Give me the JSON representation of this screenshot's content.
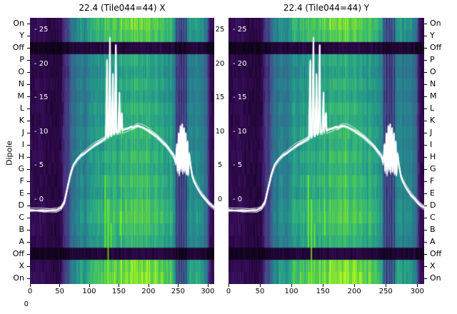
{
  "figure": {
    "panels": [
      {
        "title": "22.4 (Tile044=44) X"
      },
      {
        "title": "22.4 (Tile044=44) Y"
      }
    ],
    "left_axis_label": "Dipole",
    "corner_zero": "0"
  },
  "chart_data": {
    "type": "heatmap",
    "description": "Two spectrogram-style heatmaps (dipole row vs frequency channel, viridis colormap) for Tile044 X and Y polarisations, each overlaid with white bandpass power curves (scale 0-25) showing a broad hump with narrow RFI spikes near channels 130-155 and an oscillating cluster near channels 246-270.",
    "x_ticks": [
      0,
      50,
      100,
      150,
      200,
      250,
      300
    ],
    "x_range": [
      0,
      311
    ],
    "dipole_rows": [
      "On",
      "Y",
      "Off",
      "P",
      "O",
      "N",
      "M",
      "L",
      "K",
      "J",
      "I",
      "H",
      "G",
      "F",
      "E",
      "D",
      "C",
      "B",
      "A",
      "Off",
      "X",
      "On"
    ],
    "overlay_axis": {
      "ticks": [
        25,
        20,
        15,
        10,
        5,
        0
      ],
      "inner_label_prefix": "- "
    },
    "colormap": {
      "stops": [
        [
          0.0,
          "#0c0316"
        ],
        [
          0.12,
          "#340a54"
        ],
        [
          0.25,
          "#46327e"
        ],
        [
          0.4,
          "#3b5f8c"
        ],
        [
          0.55,
          "#2b788e"
        ],
        [
          0.68,
          "#23968b"
        ],
        [
          0.8,
          "#35b779"
        ],
        [
          0.9,
          "#5ad046"
        ],
        [
          1.0,
          "#aef522"
        ]
      ]
    },
    "heatmap": {
      "column_profile": [
        [
          0,
          0.1
        ],
        [
          15,
          0.12
        ],
        [
          30,
          0.09
        ],
        [
          45,
          0.08
        ],
        [
          52,
          0.1
        ],
        [
          56,
          0.22
        ],
        [
          60,
          0.3
        ],
        [
          64,
          0.26
        ],
        [
          68,
          0.45
        ],
        [
          72,
          0.55
        ],
        [
          76,
          0.5
        ],
        [
          80,
          0.58
        ],
        [
          86,
          0.62
        ],
        [
          92,
          0.55
        ],
        [
          98,
          0.66
        ],
        [
          104,
          0.72
        ],
        [
          110,
          0.68
        ],
        [
          116,
          0.75
        ],
        [
          122,
          0.7
        ],
        [
          128,
          0.78
        ],
        [
          134,
          0.74
        ],
        [
          140,
          0.8
        ],
        [
          146,
          0.76
        ],
        [
          152,
          0.82
        ],
        [
          158,
          0.78
        ],
        [
          164,
          0.84
        ],
        [
          170,
          0.8
        ],
        [
          176,
          0.85
        ],
        [
          182,
          0.81
        ],
        [
          188,
          0.84
        ],
        [
          194,
          0.79
        ],
        [
          200,
          0.82
        ],
        [
          206,
          0.77
        ],
        [
          212,
          0.8
        ],
        [
          218,
          0.74
        ],
        [
          224,
          0.77
        ],
        [
          230,
          0.71
        ],
        [
          236,
          0.74
        ],
        [
          240,
          0.68
        ],
        [
          244,
          0.6
        ],
        [
          247,
          0.22
        ],
        [
          249,
          0.5
        ],
        [
          251,
          0.15
        ],
        [
          253,
          0.48
        ],
        [
          255,
          0.13
        ],
        [
          257,
          0.46
        ],
        [
          259,
          0.16
        ],
        [
          261,
          0.52
        ],
        [
          263,
          0.18
        ],
        [
          265,
          0.55
        ],
        [
          268,
          0.6
        ],
        [
          272,
          0.63
        ],
        [
          276,
          0.6
        ],
        [
          280,
          0.63
        ],
        [
          285,
          0.6
        ],
        [
          290,
          0.58
        ],
        [
          295,
          0.55
        ],
        [
          299,
          0.4
        ],
        [
          302,
          0.18
        ],
        [
          305,
          0.12
        ],
        [
          311,
          0.1
        ]
      ],
      "row_gain": [
        1.12,
        1.08,
        0.1,
        0.92,
        0.88,
        0.95,
        0.9,
        0.97,
        0.93,
        0.99,
        0.95,
        1.0,
        0.96,
        1.02,
        0.98,
        1.05,
        1.08,
        1.02,
        0.97,
        0.1,
        1.15,
        1.18
      ],
      "dark_row_indices": [
        2,
        19
      ],
      "accent_vlines": [
        {
          "chan": 126,
          "row_start": 13,
          "row_end": 18,
          "color": "#7CFC00"
        },
        {
          "chan": 131,
          "row_start": 15,
          "row_end": 21,
          "color": "#8dff00"
        },
        {
          "chan": 136,
          "row_start": 17,
          "row_end": 18,
          "color": "#7CFC00"
        },
        {
          "chan": 152,
          "row_start": 16,
          "row_end": 17,
          "color": "#7CFC00"
        }
      ]
    },
    "line_profile": [
      [
        0,
        -1.4
      ],
      [
        25,
        -1.5
      ],
      [
        45,
        -1.4
      ],
      [
        52,
        -1.1
      ],
      [
        58,
        -0.2
      ],
      [
        63,
        1.8
      ],
      [
        68,
        3.8
      ],
      [
        73,
        5.2
      ],
      [
        80,
        6.1
      ],
      [
        87,
        6.7
      ],
      [
        93,
        7.0
      ],
      [
        98,
        7.4
      ],
      [
        104,
        7.8
      ],
      [
        110,
        8.2
      ],
      [
        116,
        8.5
      ],
      [
        121,
        8.8
      ],
      [
        125,
        9.0
      ],
      [
        128,
        9.2
      ],
      [
        130,
        20.5
      ],
      [
        131,
        9.4
      ],
      [
        133,
        9.5
      ],
      [
        135,
        23.8
      ],
      [
        136,
        9.7
      ],
      [
        138,
        9.7
      ],
      [
        140,
        18.5
      ],
      [
        141,
        9.9
      ],
      [
        143,
        10.0
      ],
      [
        145,
        22.8
      ],
      [
        146,
        10.1
      ],
      [
        149,
        10.1
      ],
      [
        151,
        15.8
      ],
      [
        152,
        10.2
      ],
      [
        155,
        12.8
      ],
      [
        156,
        10.3
      ],
      [
        159,
        10.4
      ],
      [
        162,
        10.5
      ],
      [
        166,
        10.6
      ],
      [
        170,
        10.8
      ],
      [
        174,
        10.7
      ],
      [
        178,
        10.9
      ],
      [
        182,
        11.0
      ],
      [
        186,
        10.9
      ],
      [
        190,
        10.8
      ],
      [
        194,
        10.6
      ],
      [
        198,
        10.4
      ],
      [
        203,
        10.1
      ],
      [
        208,
        9.8
      ],
      [
        213,
        9.5
      ],
      [
        218,
        9.1
      ],
      [
        223,
        8.7
      ],
      [
        228,
        8.3
      ],
      [
        233,
        7.8
      ],
      [
        238,
        7.2
      ],
      [
        243,
        6.6
      ],
      [
        246,
        5.6
      ],
      [
        248,
        8.2
      ],
      [
        249,
        4.4
      ],
      [
        251,
        9.8
      ],
      [
        252,
        4.0
      ],
      [
        254,
        10.9
      ],
      [
        255,
        4.6
      ],
      [
        257,
        11.2
      ],
      [
        258,
        4.2
      ],
      [
        260,
        10.6
      ],
      [
        261,
        4.4
      ],
      [
        263,
        9.8
      ],
      [
        264,
        4.0
      ],
      [
        266,
        8.6
      ],
      [
        267,
        3.8
      ],
      [
        269,
        6.8
      ],
      [
        271,
        5.2
      ],
      [
        274,
        3.6
      ],
      [
        277,
        2.8
      ],
      [
        281,
        2.1
      ],
      [
        285,
        1.5
      ],
      [
        290,
        0.8
      ],
      [
        296,
        0.2
      ],
      [
        302,
        -0.4
      ],
      [
        308,
        -0.9
      ],
      [
        311,
        -1.0
      ]
    ]
  }
}
